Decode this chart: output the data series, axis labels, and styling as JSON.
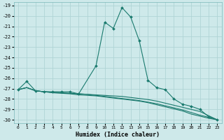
{
  "xlabel": "Humidex (Indice chaleur)",
  "background_color": "#cee9ea",
  "grid_color": "#afd4d5",
  "line_color": "#1a7a6e",
  "xlim": [
    -0.5,
    23.5
  ],
  "ylim": [
    -30.3,
    -18.7
  ],
  "xticks": [
    0,
    1,
    2,
    3,
    4,
    5,
    6,
    7,
    8,
    9,
    10,
    11,
    12,
    13,
    14,
    15,
    16,
    17,
    18,
    19,
    20,
    21,
    22,
    23
  ],
  "yticks": [
    -19,
    -20,
    -21,
    -22,
    -23,
    -24,
    -25,
    -26,
    -27,
    -28,
    -29,
    -30
  ],
  "lines": [
    {
      "x": [
        0,
        1,
        2,
        3,
        4,
        5,
        6,
        7,
        9,
        10,
        11,
        12,
        13,
        14,
        15,
        16,
        17,
        18,
        19,
        20,
        21,
        22,
        23
      ],
      "y": [
        -27.1,
        -26.3,
        -27.2,
        -27.3,
        -27.3,
        -27.3,
        -27.3,
        -27.5,
        -24.8,
        -20.6,
        -21.2,
        -19.2,
        -20.1,
        -22.4,
        -26.2,
        -26.9,
        -27.1,
        -28.0,
        -28.5,
        -28.7,
        -29.0,
        -29.7,
        -30.0
      ],
      "marker": true
    },
    {
      "x": [
        0,
        1,
        2,
        3,
        4,
        5,
        6,
        7,
        8,
        9,
        10,
        11,
        12,
        13,
        14,
        15,
        16,
        17,
        18,
        19,
        20,
        21,
        22,
        23
      ],
      "y": [
        -27.1,
        -26.9,
        -27.2,
        -27.3,
        -27.35,
        -27.4,
        -27.45,
        -27.5,
        -27.55,
        -27.6,
        -27.65,
        -27.7,
        -27.75,
        -27.85,
        -27.95,
        -28.05,
        -28.2,
        -28.4,
        -28.6,
        -28.8,
        -29.0,
        -29.2,
        -29.6,
        -30.0
      ],
      "marker": false
    },
    {
      "x": [
        0,
        1,
        2,
        3,
        4,
        5,
        6,
        7,
        8,
        9,
        10,
        11,
        12,
        13,
        14,
        15,
        16,
        17,
        18,
        19,
        20,
        21,
        22,
        23
      ],
      "y": [
        -27.1,
        -26.9,
        -27.2,
        -27.3,
        -27.35,
        -27.4,
        -27.45,
        -27.5,
        -27.55,
        -27.65,
        -27.75,
        -27.85,
        -27.95,
        -28.05,
        -28.15,
        -28.3,
        -28.45,
        -28.65,
        -28.85,
        -29.05,
        -29.3,
        -29.55,
        -29.75,
        -30.0
      ],
      "marker": false
    },
    {
      "x": [
        0,
        1,
        2,
        3,
        4,
        5,
        6,
        7,
        8,
        9,
        10,
        11,
        12,
        13,
        14,
        15,
        16,
        17,
        18,
        19,
        20,
        21,
        22,
        23
      ],
      "y": [
        -27.1,
        -26.9,
        -27.2,
        -27.3,
        -27.4,
        -27.45,
        -27.5,
        -27.6,
        -27.65,
        -27.7,
        -27.8,
        -27.9,
        -28.0,
        -28.1,
        -28.2,
        -28.35,
        -28.55,
        -28.75,
        -28.95,
        -29.15,
        -29.45,
        -29.65,
        -29.85,
        -30.0
      ],
      "marker": false
    }
  ]
}
